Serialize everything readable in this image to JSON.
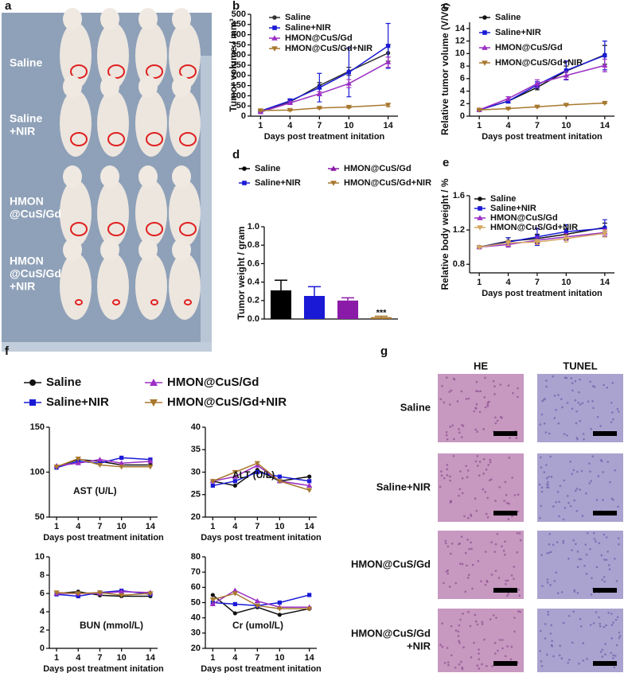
{
  "panels": {
    "a": {
      "label": "a",
      "groups": [
        [
          "Saline"
        ],
        [
          "Saline",
          "+NIR"
        ],
        [
          "HMON",
          "@CuS/Gd"
        ],
        [
          "HMON",
          "@CuS/Gd",
          "+NIR"
        ]
      ]
    },
    "f": {
      "label": "f"
    },
    "g": {
      "label": "g",
      "columns": [
        "HE",
        "TUNEL"
      ],
      "rows": [
        [
          "Saline"
        ],
        [
          "Saline+NIR"
        ],
        [
          "HMON@CuS/Gd"
        ],
        [
          "HMON@CuS/Gd",
          "+NIR"
        ]
      ]
    }
  },
  "chart_data": [
    {
      "type": "line",
      "panel": "b",
      "x": [
        1,
        4,
        7,
        10,
        14
      ],
      "xlim": [
        0,
        15
      ],
      "xticks": [
        1,
        4,
        7,
        10,
        14
      ],
      "xlabel": "Days post treatment initation",
      "ylabel": "Tumor volume / mm³",
      "ylim": [
        0,
        500
      ],
      "yticks": [
        0,
        50,
        100,
        150,
        200,
        250,
        300,
        350,
        400,
        450,
        500
      ],
      "series": [
        {
          "name": "Saline",
          "color": "#333333",
          "marker": "circle",
          "values": [
            25,
            70,
            150,
            220,
            310
          ],
          "errors": [
            5,
            8,
            15,
            20,
            40
          ]
        },
        {
          "name": "Saline+NIR",
          "color": "#1a1ad6",
          "marker": "square",
          "values": [
            25,
            75,
            140,
            215,
            345
          ],
          "errors": [
            5,
            10,
            70,
            120,
            110
          ]
        },
        {
          "name": "HMON@CuS/Gd",
          "color": "#9b2fc4",
          "marker": "triangle-up",
          "values": [
            20,
            65,
            110,
            160,
            265
          ],
          "errors": [
            5,
            8,
            10,
            20,
            25
          ]
        },
        {
          "name": "HMON@CuS/Gd+NIR",
          "color": "#a8782e",
          "marker": "triangle-down",
          "values": [
            28,
            30,
            40,
            45,
            55
          ],
          "errors": [
            3,
            4,
            4,
            5,
            8
          ]
        }
      ]
    },
    {
      "type": "line",
      "panel": "c",
      "x": [
        1,
        4,
        7,
        10,
        14
      ],
      "xlim": [
        0,
        15
      ],
      "xticks": [
        1,
        4,
        7,
        10,
        14
      ],
      "xlabel": "Days post treatment initation",
      "ylabel": "Relative tumor volume (V/V0)",
      "ylim": [
        0,
        15
      ],
      "yticks": [
        0,
        2,
        4,
        6,
        8,
        10,
        12,
        14
      ],
      "series": [
        {
          "name": "Saline",
          "color": "#111111",
          "marker": "circle",
          "values": [
            1,
            2.4,
            4.6,
            7.2,
            9.8
          ],
          "errors": [
            0.1,
            0.3,
            0.4,
            0.8,
            1.5
          ]
        },
        {
          "name": "Saline+NIR",
          "color": "#1a1ad6",
          "marker": "square",
          "values": [
            1,
            2.4,
            5.0,
            7.3,
            9.7
          ],
          "errors": [
            0.1,
            0.3,
            0.5,
            1.5,
            2.3
          ]
        },
        {
          "name": "HMON@CuS/Gd",
          "color": "#9b2fc4",
          "marker": "triangle-up",
          "values": [
            1,
            2.8,
            5.2,
            6.5,
            8.1
          ],
          "errors": [
            0.1,
            0.3,
            0.6,
            0.6,
            1.0
          ]
        },
        {
          "name": "HMON@CuS/Gd+NIR",
          "color": "#a8782e",
          "marker": "triangle-down",
          "values": [
            1,
            1.2,
            1.5,
            1.8,
            2.1
          ],
          "errors": [
            0.05,
            0.1,
            0.1,
            0.1,
            0.1
          ]
        }
      ]
    },
    {
      "type": "bar",
      "panel": "d",
      "ylabel": "Tumor weight / gram",
      "ylim": [
        0,
        1
      ],
      "yticks": [
        {
          "value": 0,
          "label": "0.0"
        },
        0.2,
        0.4,
        0.6,
        0.8,
        {
          "value": 1,
          "label": "1.0"
        }
      ],
      "annotation": "***",
      "series": [
        {
          "name": "Saline",
          "color": "#000000",
          "marker": "circle",
          "values": [
            0.31
          ],
          "errors": [
            0.11
          ]
        },
        {
          "name": "Saline+NIR",
          "color": "#1a1ad6",
          "marker": "square",
          "values": [
            0.25
          ],
          "errors": [
            0.1
          ]
        },
        {
          "name": "HMON@CuS/Gd",
          "color": "#8a1aa8",
          "marker": "triangle-up",
          "values": [
            0.2
          ],
          "errors": [
            0.03
          ]
        },
        {
          "name": "HMON@CuS/Gd+NIR",
          "color": "#a8782e",
          "marker": "triangle-down",
          "values": [
            0.02
          ],
          "errors": [
            0.01
          ]
        }
      ]
    },
    {
      "type": "line",
      "panel": "e",
      "x": [
        1,
        4,
        7,
        10,
        14
      ],
      "xlim": [
        0,
        15
      ],
      "xticks": [
        1,
        4,
        7,
        10,
        14
      ],
      "xlabel": "Days post treatment initation",
      "ylabel": "Relative body weight / %",
      "ylim": [
        0.7,
        1.6
      ],
      "yticks": [
        0.8,
        1.2,
        1.6
      ],
      "series": [
        {
          "name": "Saline",
          "color": "#111111",
          "marker": "circle",
          "values": [
            1.0,
            1.07,
            1.1,
            1.15,
            1.23
          ],
          "errors": [
            0.01,
            0.04,
            0.05,
            0.06,
            0.05
          ]
        },
        {
          "name": "Saline+NIR",
          "color": "#1a1ad6",
          "marker": "square",
          "values": [
            1.0,
            1.06,
            1.12,
            1.18,
            1.22
          ],
          "errors": [
            0.01,
            0.05,
            0.1,
            0.08,
            0.1
          ]
        },
        {
          "name": "HMON@CuS/Gd",
          "color": "#9b2fc4",
          "marker": "triangle-up",
          "values": [
            1.0,
            1.03,
            1.08,
            1.12,
            1.17
          ],
          "errors": [
            0.01,
            0.03,
            0.04,
            0.04,
            0.04
          ]
        },
        {
          "name": "HMON@CuS/Gd+NIR",
          "color": "#d4a860",
          "marker": "triangle-down",
          "values": [
            1.0,
            1.05,
            1.06,
            1.1,
            1.16
          ],
          "errors": [
            0.01,
            0.03,
            0.03,
            0.04,
            0.04
          ]
        }
      ]
    },
    {
      "type": "line",
      "x": [
        1,
        4,
        7,
        10,
        14
      ],
      "xlim": [
        0,
        15
      ],
      "xticks": [
        1,
        4,
        7,
        10,
        14
      ],
      "xlabel": "Days post treatment initation",
      "annotation": "AST (U/L)",
      "ylim": [
        50,
        150
      ],
      "yticks": [
        50,
        100,
        150
      ],
      "series": [
        {
          "name": "Saline",
          "color": "#111111",
          "marker": "circle",
          "values": [
            106,
            114,
            112,
            108,
            108
          ]
        },
        {
          "name": "Saline+NIR",
          "color": "#1a1ad6",
          "marker": "square",
          "values": [
            105,
            112,
            110,
            116,
            114
          ]
        },
        {
          "name": "HMON@CuS/Gd",
          "color": "#9b2fc4",
          "marker": "triangle-up",
          "values": [
            107,
            110,
            114,
            110,
            112
          ]
        },
        {
          "name": "HMON@CuS/Gd+NIR",
          "color": "#a8782e",
          "marker": "triangle-down",
          "values": [
            106,
            115,
            108,
            106,
            106
          ]
        }
      ]
    },
    {
      "type": "line",
      "x": [
        1,
        4,
        7,
        10,
        14
      ],
      "xlim": [
        0,
        15
      ],
      "xticks": [
        1,
        4,
        7,
        10,
        14
      ],
      "xlabel": "Days post treatment initation",
      "annotation": "ALT (U/L)",
      "ylim": [
        20,
        40
      ],
      "yticks": [
        20,
        25,
        30,
        35,
        40
      ],
      "series": [
        {
          "color": "#111111",
          "marker": "circle",
          "values": [
            28,
            27,
            30.5,
            28,
            29
          ]
        },
        {
          "color": "#1a1ad6",
          "marker": "square",
          "values": [
            27,
            28,
            30,
            29,
            28
          ]
        },
        {
          "color": "#9b2fc4",
          "marker": "triangle-up",
          "values": [
            28,
            29,
            31.5,
            28,
            27
          ]
        },
        {
          "color": "#a8782e",
          "marker": "triangle-down",
          "values": [
            28,
            30,
            32,
            28,
            26
          ]
        }
      ]
    },
    {
      "type": "line",
      "x": [
        1,
        4,
        7,
        10,
        14
      ],
      "xlim": [
        0,
        15
      ],
      "xticks": [
        1,
        4,
        7,
        10,
        14
      ],
      "xlabel": "Days post treatment initation",
      "annotation": "BUN (mmol/L)",
      "ylim": [
        0,
        10
      ],
      "yticks": [
        0,
        2,
        4,
        6,
        8,
        10
      ],
      "series": [
        {
          "color": "#111111",
          "marker": "circle",
          "values": [
            6,
            6.2,
            5.8,
            5.7,
            5.7
          ]
        },
        {
          "color": "#1a1ad6",
          "marker": "square",
          "values": [
            5.9,
            5.7,
            6.1,
            6.3,
            5.9
          ]
        },
        {
          "color": "#9b2fc4",
          "marker": "triangle-up",
          "values": [
            6,
            6,
            6,
            6.2,
            6.1
          ]
        },
        {
          "color": "#a8782e",
          "marker": "triangle-down",
          "values": [
            6.1,
            6.0,
            6.1,
            5.8,
            6.0
          ]
        }
      ]
    },
    {
      "type": "line",
      "x": [
        1,
        4,
        7,
        10,
        14
      ],
      "xlim": [
        0,
        15
      ],
      "xticks": [
        1,
        4,
        7,
        10,
        14
      ],
      "xlabel": "Days post treatment initation",
      "annotation": "Cr (umol/L)",
      "ylim": [
        20,
        80
      ],
      "yticks": [
        20,
        30,
        40,
        50,
        60,
        70,
        80
      ],
      "series": [
        {
          "color": "#111111",
          "marker": "circle",
          "values": [
            55,
            43,
            47,
            42,
            46
          ]
        },
        {
          "color": "#1a1ad6",
          "marker": "square",
          "values": [
            50,
            49,
            48,
            50,
            55
          ]
        },
        {
          "color": "#9b2fc4",
          "marker": "triangle-up",
          "values": [
            49,
            58,
            51,
            47,
            47
          ]
        },
        {
          "color": "#a8782e",
          "marker": "triangle-down",
          "values": [
            52,
            56,
            48,
            46,
            46
          ]
        }
      ]
    }
  ]
}
